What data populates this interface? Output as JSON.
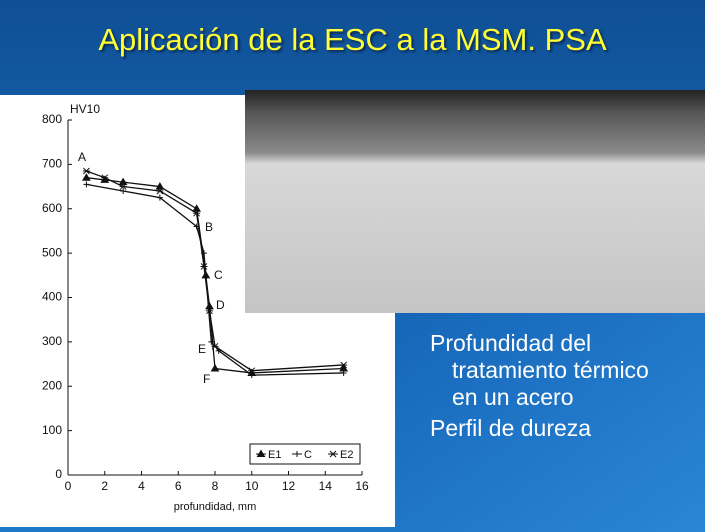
{
  "title": "Aplicación de la ESC a la MSM. PSA",
  "chart_data": {
    "type": "line",
    "y_label": "HV10",
    "x_label": "profundidad, mm",
    "xlim": [
      0,
      16
    ],
    "xticks": [
      0,
      2,
      4,
      6,
      8,
      10,
      12,
      14,
      16
    ],
    "ylim": [
      0,
      800
    ],
    "yticks": [
      0,
      100,
      200,
      300,
      400,
      500,
      600,
      700,
      800
    ],
    "series": [
      {
        "name": "E1",
        "color": "#111111",
        "x": [
          1,
          2,
          3,
          5,
          7,
          7.5,
          7.7,
          8,
          10,
          15
        ],
        "values": [
          670,
          665,
          660,
          650,
          600,
          450,
          380,
          240,
          230,
          240
        ]
      },
      {
        "name": "C",
        "color": "#111111",
        "x": [
          1,
          3,
          5,
          7,
          7.4,
          7.8,
          8.2,
          10,
          15
        ],
        "values": [
          655,
          640,
          625,
          560,
          500,
          300,
          280,
          225,
          230
        ]
      },
      {
        "name": "E2",
        "color": "#111111",
        "x": [
          1,
          2,
          3,
          5,
          7,
          7.4,
          7.7,
          8,
          10,
          15
        ],
        "values": [
          685,
          670,
          650,
          640,
          590,
          470,
          370,
          290,
          235,
          248
        ]
      }
    ],
    "annotations": [
      "A",
      "B",
      "C",
      "D",
      "E",
      "F"
    ]
  },
  "bullets": [
    "Profundidad del tratamiento térmico en un acero",
    "Perfil de dureza"
  ]
}
